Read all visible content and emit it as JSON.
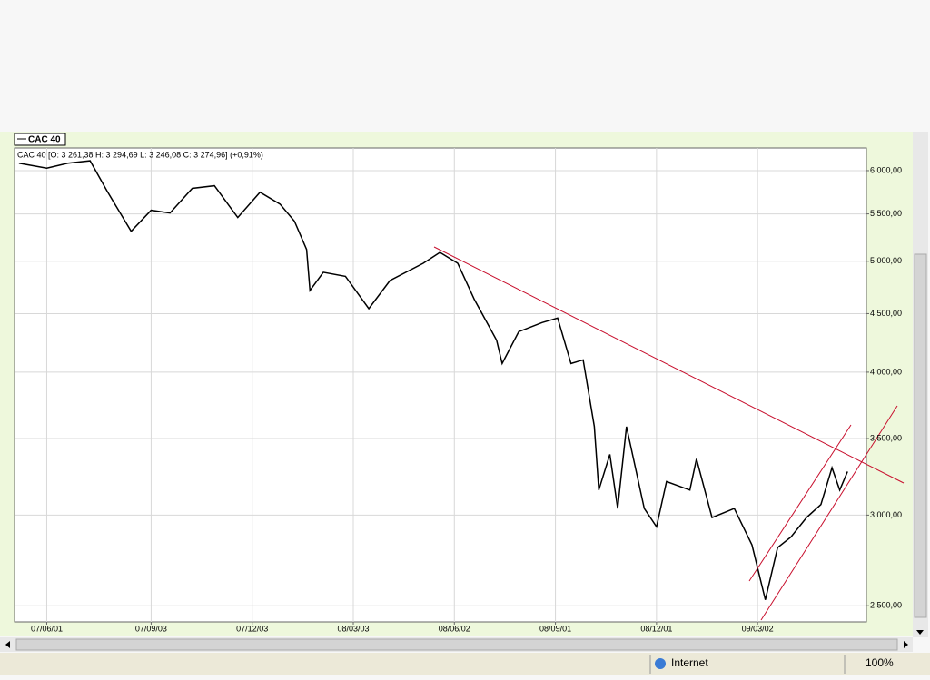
{
  "chart_data": {
    "type": "line",
    "subtitle": "CAC 40 [O: 3 261,38  H: 3 294,69  L: 3 246,08  C: 3 274,96] (+0,91%)",
    "x": [
      "2007-05-07",
      "2007-06-01",
      "2007-06-20",
      "2007-07-10",
      "2007-07-25",
      "2007-08-16",
      "2007-09-03",
      "2007-09-20",
      "2007-10-10",
      "2007-10-30",
      "2007-11-20",
      "2007-12-10",
      "2007-12-28",
      "2008-01-10",
      "2008-01-21",
      "2008-01-24",
      "2008-02-05",
      "2008-02-25",
      "2008-03-17",
      "2008-04-05",
      "2008-05-05",
      "2008-05-20",
      "2008-06-05",
      "2008-06-20",
      "2008-07-10",
      "2008-07-15",
      "2008-07-30",
      "2008-08-20",
      "2008-09-03",
      "2008-09-15",
      "2008-09-26",
      "2008-10-06",
      "2008-10-10",
      "2008-10-20",
      "2008-10-27",
      "2008-11-04",
      "2008-11-20",
      "2008-12-01",
      "2008-12-10",
      "2008-12-31",
      "2009-01-06",
      "2009-01-20",
      "2009-02-09",
      "2009-02-25",
      "2009-03-09",
      "2009-03-20",
      "2009-04-01",
      "2009-04-15",
      "2009-04-28",
      "2009-05-08",
      "2009-05-15",
      "2009-05-22"
    ],
    "series": [
      {
        "name": "CAC 40",
        "color": "#000000",
        "values": [
          6090,
          6030,
          6090,
          6120,
          5765,
          5310,
          5540,
          5510,
          5790,
          5820,
          5460,
          5745,
          5610,
          5420,
          5120,
          4715,
          4890,
          4850,
          4545,
          4810,
          4980,
          5090,
          4980,
          4630,
          4265,
          4070,
          4340,
          4420,
          4460,
          4070,
          4100,
          3585,
          3155,
          3390,
          3040,
          3585,
          3040,
          2930,
          3210,
          3155,
          3360,
          2985,
          3040,
          2825,
          2530,
          2810,
          2870,
          2985,
          3065,
          3300,
          3155,
          3275
        ]
      }
    ],
    "xlim": [
      "2007-05-03",
      "2009-06-08"
    ],
    "xticks": [
      {
        "value": "2007-06-01",
        "label": "07/06/01"
      },
      {
        "value": "2007-09-03",
        "label": "07/09/03"
      },
      {
        "value": "2007-12-03",
        "label": "07/12/03"
      },
      {
        "value": "2008-03-03",
        "label": "08/03/03"
      },
      {
        "value": "2008-06-02",
        "label": "08/06/02"
      },
      {
        "value": "2008-09-01",
        "label": "08/09/01"
      },
      {
        "value": "2008-12-01",
        "label": "08/12/01"
      },
      {
        "value": "2009-03-02",
        "label": "09/03/02"
      }
    ],
    "ylim": [
      2420,
      6280
    ],
    "yscale": "log",
    "yticks": [
      {
        "value": 2500,
        "label": "2 500,00"
      },
      {
        "value": 3000,
        "label": "3 000,00"
      },
      {
        "value": 3500,
        "label": "3 500,00"
      },
      {
        "value": 4000,
        "label": "4 000,00"
      },
      {
        "value": 4500,
        "label": "4 500,00"
      },
      {
        "value": 5000,
        "label": "5 000,00"
      },
      {
        "value": 5500,
        "label": "5 500,00"
      },
      {
        "value": 6000,
        "label": "6 000,00"
      }
    ],
    "grid": true
  },
  "status_bar": {
    "zone": "Internet",
    "zoom": "100%"
  }
}
